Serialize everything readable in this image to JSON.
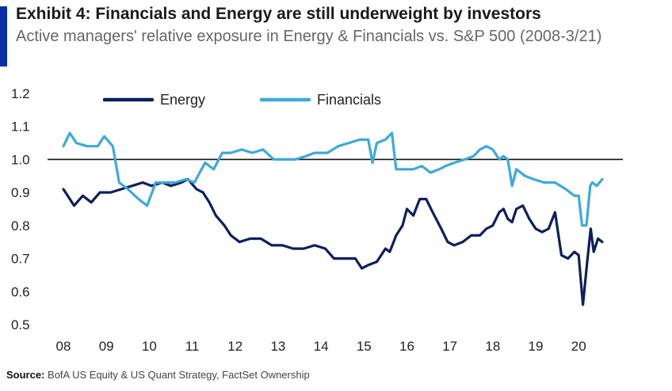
{
  "title": "Exhibit 4: Financials and Energy are still underweight by investors",
  "subtitle": "Active managers' relative exposure in Energy & Financials vs. S&P 500 (2008-3/21)",
  "source_label": "Source:",
  "source_text": "BofA US Equity & US Quant Strategy, FactSet Ownership",
  "colors": {
    "accent": "#0b2fa8",
    "energy": "#0d1f5c",
    "financials": "#3fa9d8",
    "reference": "#111111"
  },
  "chart_data": {
    "type": "line",
    "ylim": [
      0.5,
      1.2
    ],
    "xlim": [
      2008.0,
      2020.55
    ],
    "y_ticks": [
      "0.5",
      "0.6",
      "0.7",
      "0.8",
      "0.9",
      "1.0",
      "1.1",
      "1.2"
    ],
    "x_ticks": [
      "08",
      "09",
      "10",
      "11",
      "12",
      "13",
      "14",
      "15",
      "16",
      "17",
      "18",
      "19",
      "20"
    ],
    "reference_line": 1.0,
    "legend": "top-left",
    "series": [
      {
        "name": "Energy",
        "color": "#0d1f5c",
        "points": [
          [
            2008.0,
            0.91
          ],
          [
            2008.1,
            0.89
          ],
          [
            2008.25,
            0.86
          ],
          [
            2008.45,
            0.89
          ],
          [
            2008.65,
            0.87
          ],
          [
            2008.85,
            0.9
          ],
          [
            2009.1,
            0.9
          ],
          [
            2009.35,
            0.91
          ],
          [
            2009.6,
            0.92
          ],
          [
            2009.85,
            0.93
          ],
          [
            2010.05,
            0.92
          ],
          [
            2010.3,
            0.93
          ],
          [
            2010.5,
            0.92
          ],
          [
            2010.75,
            0.93
          ],
          [
            2010.9,
            0.94
          ],
          [
            2011.1,
            0.91
          ],
          [
            2011.25,
            0.9
          ],
          [
            2011.4,
            0.87
          ],
          [
            2011.55,
            0.83
          ],
          [
            2011.75,
            0.8
          ],
          [
            2011.9,
            0.77
          ],
          [
            2012.1,
            0.75
          ],
          [
            2012.35,
            0.76
          ],
          [
            2012.6,
            0.76
          ],
          [
            2012.85,
            0.74
          ],
          [
            2013.1,
            0.74
          ],
          [
            2013.35,
            0.73
          ],
          [
            2013.6,
            0.73
          ],
          [
            2013.85,
            0.74
          ],
          [
            2014.1,
            0.73
          ],
          [
            2014.3,
            0.7
          ],
          [
            2014.55,
            0.7
          ],
          [
            2014.8,
            0.7
          ],
          [
            2014.95,
            0.67
          ],
          [
            2015.1,
            0.68
          ],
          [
            2015.3,
            0.69
          ],
          [
            2015.5,
            0.73
          ],
          [
            2015.6,
            0.72
          ],
          [
            2015.75,
            0.77
          ],
          [
            2015.9,
            0.8
          ],
          [
            2016.0,
            0.85
          ],
          [
            2016.15,
            0.83
          ],
          [
            2016.3,
            0.88
          ],
          [
            2016.45,
            0.88
          ],
          [
            2016.6,
            0.84
          ],
          [
            2016.8,
            0.79
          ],
          [
            2016.95,
            0.75
          ],
          [
            2017.1,
            0.74
          ],
          [
            2017.3,
            0.75
          ],
          [
            2017.5,
            0.77
          ],
          [
            2017.7,
            0.77
          ],
          [
            2017.85,
            0.79
          ],
          [
            2018.0,
            0.8
          ],
          [
            2018.15,
            0.84
          ],
          [
            2018.25,
            0.85
          ],
          [
            2018.35,
            0.82
          ],
          [
            2018.45,
            0.81
          ],
          [
            2018.55,
            0.85
          ],
          [
            2018.7,
            0.86
          ],
          [
            2018.85,
            0.82
          ],
          [
            2019.0,
            0.79
          ],
          [
            2019.15,
            0.78
          ],
          [
            2019.3,
            0.79
          ],
          [
            2019.45,
            0.84
          ],
          [
            2019.6,
            0.71
          ],
          [
            2019.75,
            0.7
          ],
          [
            2019.9,
            0.72
          ],
          [
            2020.0,
            0.71
          ],
          [
            2020.1,
            0.56
          ],
          [
            2020.2,
            0.69
          ],
          [
            2020.28,
            0.79
          ],
          [
            2020.35,
            0.72
          ],
          [
            2020.45,
            0.76
          ],
          [
            2020.55,
            0.75
          ]
        ]
      },
      {
        "name": "Financials",
        "color": "#3fa9d8",
        "points": [
          [
            2008.0,
            1.04
          ],
          [
            2008.15,
            1.08
          ],
          [
            2008.3,
            1.05
          ],
          [
            2008.55,
            1.04
          ],
          [
            2008.8,
            1.04
          ],
          [
            2008.95,
            1.07
          ],
          [
            2009.15,
            1.04
          ],
          [
            2009.3,
            0.93
          ],
          [
            2009.5,
            0.91
          ],
          [
            2009.75,
            0.88
          ],
          [
            2009.95,
            0.86
          ],
          [
            2010.15,
            0.93
          ],
          [
            2010.35,
            0.93
          ],
          [
            2010.6,
            0.93
          ],
          [
            2010.85,
            0.94
          ],
          [
            2011.05,
            0.93
          ],
          [
            2011.3,
            0.99
          ],
          [
            2011.5,
            0.97
          ],
          [
            2011.7,
            1.02
          ],
          [
            2011.9,
            1.02
          ],
          [
            2012.15,
            1.03
          ],
          [
            2012.4,
            1.02
          ],
          [
            2012.65,
            1.03
          ],
          [
            2012.9,
            1.0
          ],
          [
            2013.15,
            1.0
          ],
          [
            2013.4,
            1.0
          ],
          [
            2013.65,
            1.01
          ],
          [
            2013.85,
            1.02
          ],
          [
            2014.15,
            1.02
          ],
          [
            2014.4,
            1.04
          ],
          [
            2014.65,
            1.05
          ],
          [
            2014.9,
            1.06
          ],
          [
            2015.1,
            1.06
          ],
          [
            2015.2,
            0.99
          ],
          [
            2015.3,
            1.05
          ],
          [
            2015.5,
            1.06
          ],
          [
            2015.65,
            1.08
          ],
          [
            2015.75,
            0.97
          ],
          [
            2015.95,
            0.97
          ],
          [
            2016.15,
            0.97
          ],
          [
            2016.35,
            0.98
          ],
          [
            2016.55,
            0.96
          ],
          [
            2016.75,
            0.97
          ],
          [
            2016.9,
            0.98
          ],
          [
            2017.1,
            0.99
          ],
          [
            2017.35,
            1.0
          ],
          [
            2017.55,
            1.01
          ],
          [
            2017.7,
            1.03
          ],
          [
            2017.85,
            1.04
          ],
          [
            2018.0,
            1.03
          ],
          [
            2018.15,
            1.0
          ],
          [
            2018.25,
            1.01
          ],
          [
            2018.35,
            1.0
          ],
          [
            2018.45,
            0.92
          ],
          [
            2018.55,
            0.97
          ],
          [
            2018.75,
            0.95
          ],
          [
            2018.95,
            0.94
          ],
          [
            2019.2,
            0.93
          ],
          [
            2019.45,
            0.93
          ],
          [
            2019.7,
            0.91
          ],
          [
            2019.9,
            0.89
          ],
          [
            2020.0,
            0.89
          ],
          [
            2020.08,
            0.8
          ],
          [
            2020.18,
            0.8
          ],
          [
            2020.27,
            0.92
          ],
          [
            2020.32,
            0.93
          ],
          [
            2020.42,
            0.92
          ],
          [
            2020.55,
            0.94
          ]
        ]
      }
    ]
  }
}
